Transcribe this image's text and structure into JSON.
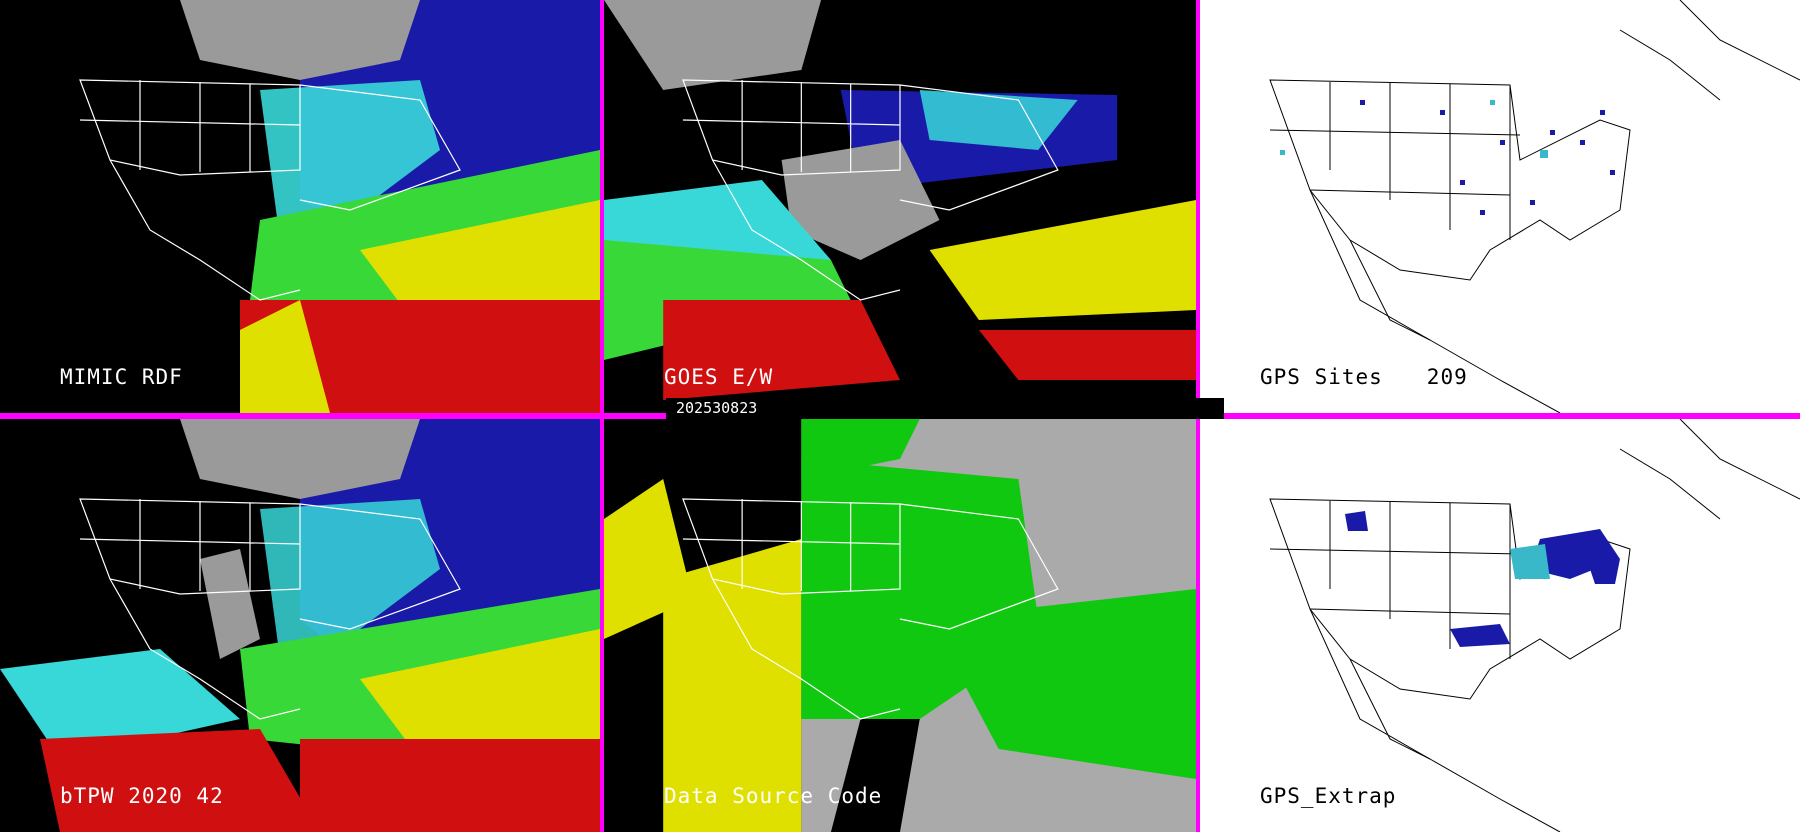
{
  "panels": [
    {
      "label": "MIMIC RDF",
      "count": ""
    },
    {
      "label": "GOES E/W",
      "count": ""
    },
    {
      "label": "GPS Sites",
      "count": "209"
    },
    {
      "label": "bTPW 2020 42",
      "count": ""
    },
    {
      "label": "Data Source Code",
      "count": ""
    },
    {
      "label": "GPS_Extrap",
      "count": ""
    }
  ],
  "date_bar": "202530823",
  "colors": {
    "divider": "#ff00ff",
    "label_light": "#ffffff",
    "label_dark": "#000000",
    "tpw_dry": "#9a9a9a",
    "tpw_low": "#1a1aa8",
    "tpw_mid": "#2020d0",
    "tpw_cyan": "#38d8d8",
    "tpw_green": "#38d838",
    "tpw_yellow": "#e0e000",
    "tpw_red": "#d01010",
    "source_yellow": "#e0e000",
    "source_green": "#10c810",
    "source_gray": "#aaaaaa"
  }
}
